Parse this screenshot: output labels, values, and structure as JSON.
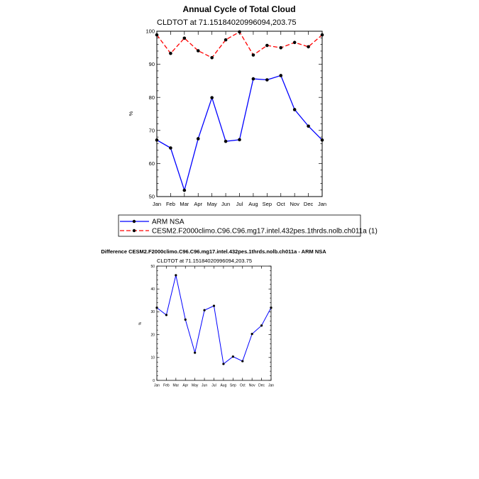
{
  "chart_data": [
    {
      "type": "line",
      "title": "Annual Cycle of Total Cloud",
      "subtitle": "CLDTOT at 71.15184020996094,203.75",
      "ylabel": "%",
      "ylim": [
        50,
        100
      ],
      "yticks": [
        50,
        60,
        70,
        80,
        90,
        100
      ],
      "categories": [
        "Jan",
        "Feb",
        "Mar",
        "Apr",
        "May",
        "Jun",
        "Jul",
        "Aug",
        "Sep",
        "Oct",
        "Nov",
        "Dec",
        "Jan"
      ],
      "series": [
        {
          "name": "ARM NSA",
          "color": "#0000ff",
          "style": "solid",
          "values": [
            67.1,
            64.7,
            51.9,
            67.5,
            79.9,
            66.7,
            67.2,
            85.6,
            85.3,
            86.6,
            76.3,
            71.3,
            67.1
          ]
        },
        {
          "name": "CESM2.F2000climo.C96.C96.mg17.intel.432pes.1thrds.nolb.ch011a (1)",
          "color": "#ff0000",
          "style": "dashed",
          "values": [
            98.9,
            93.3,
            97.9,
            94.1,
            92.0,
            97.4,
            99.8,
            92.8,
            95.7,
            95.0,
            96.6,
            95.3,
            98.9
          ]
        }
      ],
      "legend": "bottom"
    },
    {
      "type": "line",
      "title": "Difference CESM2.F2000climo.C96.C96.mg17.intel.432pes.1thrds.nolb.ch011a - ARM NSA",
      "subtitle": "CLDTOT at 71.15184020996094,203.75",
      "ylabel": "%",
      "ylim": [
        0,
        50
      ],
      "yticks": [
        0,
        10,
        20,
        30,
        40,
        50
      ],
      "categories": [
        "Jan",
        "Feb",
        "Mar",
        "Apr",
        "May",
        "Jun",
        "Jul",
        "Aug",
        "Sep",
        "Oct",
        "Nov",
        "Dec",
        "Jan"
      ],
      "series": [
        {
          "color": "#0000ff",
          "style": "solid",
          "values": [
            31.8,
            28.6,
            46.0,
            26.6,
            12.1,
            30.7,
            32.6,
            7.2,
            10.4,
            8.4,
            20.3,
            24.0,
            31.8
          ]
        }
      ]
    }
  ]
}
